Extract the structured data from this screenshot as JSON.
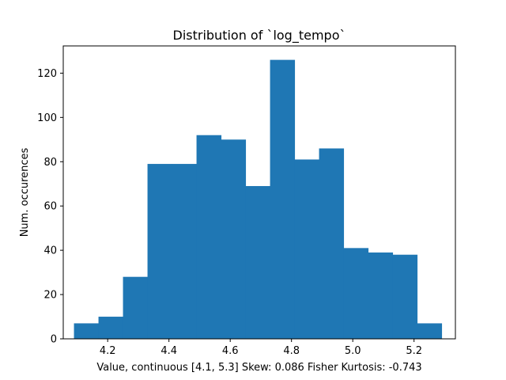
{
  "chart_data": {
    "type": "bar",
    "title": "Distribution of `log_tempo`",
    "xlabel": "Value, continuous [4.1, 5.3]     Skew: 0.086 Fisher Kurtosis: -0.743",
    "ylabel": "Num. occurences",
    "bar_color": "#1f77b4",
    "xlim": [
      4.055,
      5.335
    ],
    "ylim": [
      0,
      132.3
    ],
    "xticks": [
      4.2,
      4.4,
      4.6,
      4.8,
      5.0,
      5.2
    ],
    "xtick_labels": [
      "4.2",
      "4.4",
      "4.6",
      "4.8",
      "5.0",
      "5.2"
    ],
    "yticks": [
      0,
      20,
      40,
      60,
      80,
      100,
      120
    ],
    "ytick_labels": [
      "0",
      "20",
      "40",
      "60",
      "80",
      "100",
      "120"
    ],
    "bin_edges": [
      4.09,
      4.17,
      4.25,
      4.33,
      4.41,
      4.49,
      4.57,
      4.65,
      4.73,
      4.81,
      4.89,
      4.97,
      5.05,
      5.13,
      5.21,
      5.29
    ],
    "values": [
      7,
      10,
      28,
      79,
      79,
      92,
      90,
      69,
      126,
      81,
      86,
      41,
      39,
      38,
      7
    ],
    "grid": false,
    "legend": "none"
  }
}
